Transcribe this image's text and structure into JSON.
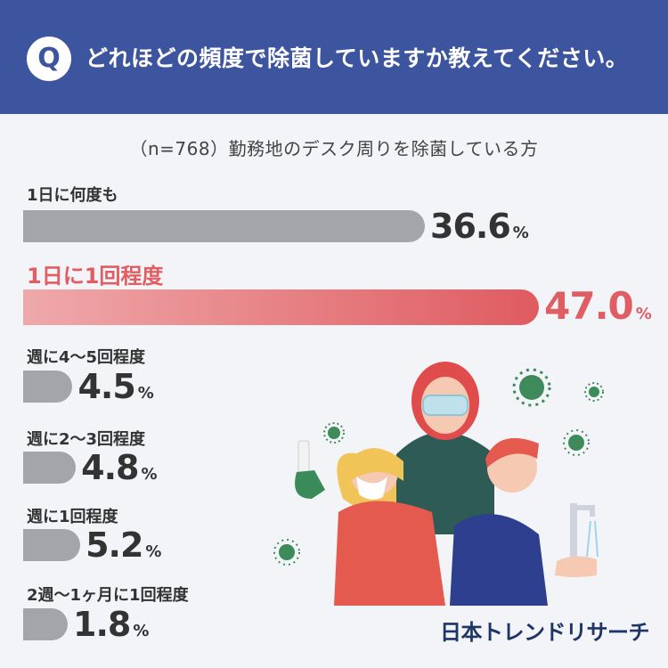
{
  "header": {
    "q_badge": "Q",
    "question": "どれほどの頻度で除菌していますか教えてください。"
  },
  "subtitle": "（n=768）勤務地のデスク周りを除菌している方",
  "brand": "日本トレンドリサーチ",
  "colors": {
    "header_bg": "#3d559f",
    "bar_gray": "#a4a5aa",
    "highlight": "#e05e63",
    "brand": "#1f3566"
  },
  "chart_data": {
    "type": "bar",
    "orientation": "horizontal",
    "unit": "%",
    "highlighted_category": "1日に1回程度",
    "categories": [
      "1日に何度も",
      "1日に1回程度",
      "週に4～5回程度",
      "週に2～3回程度",
      "週に1回程度",
      "2週～1ヶ月に1回程度"
    ],
    "values": [
      36.6,
      47.0,
      4.5,
      4.8,
      5.2,
      1.8
    ],
    "value_labels": [
      "36.6",
      "47.0",
      "4.5",
      "4.8",
      "5.2",
      "1.8"
    ],
    "unit_label": "%",
    "title": "",
    "xlabel": "",
    "ylabel": ""
  }
}
